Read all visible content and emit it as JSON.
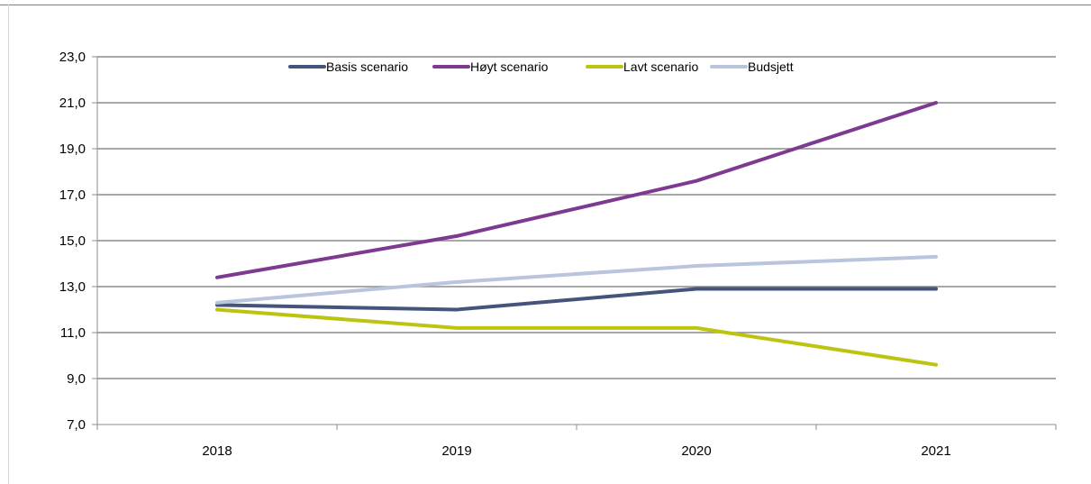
{
  "chart_data": {
    "type": "line",
    "title": "",
    "xlabel": "",
    "ylabel": "",
    "categories": [
      "2018",
      "2019",
      "2020",
      "2021"
    ],
    "ylim": [
      7.0,
      23.0
    ],
    "yticks": [
      "7,0",
      "9,0",
      "11,0",
      "13,0",
      "15,0",
      "17,0",
      "19,0",
      "21,0",
      "23,0"
    ],
    "ytick_values": [
      7,
      9,
      11,
      13,
      15,
      17,
      19,
      21,
      23
    ],
    "grid": true,
    "legend_position": "top-center",
    "series": [
      {
        "name": "Basis scenario",
        "color": "#44547a",
        "values": [
          12.2,
          12.0,
          12.9,
          12.9
        ]
      },
      {
        "name": "Høyt scenario",
        "color": "#7d3a90",
        "values": [
          13.4,
          15.2,
          17.6,
          21.0
        ]
      },
      {
        "name": "Lavt scenario",
        "color": "#bcc410",
        "values": [
          12.0,
          11.2,
          11.2,
          9.6
        ]
      },
      {
        "name": "Budsjett",
        "color": "#b9c5dc",
        "values": [
          12.3,
          13.2,
          13.9,
          14.3
        ]
      }
    ]
  }
}
